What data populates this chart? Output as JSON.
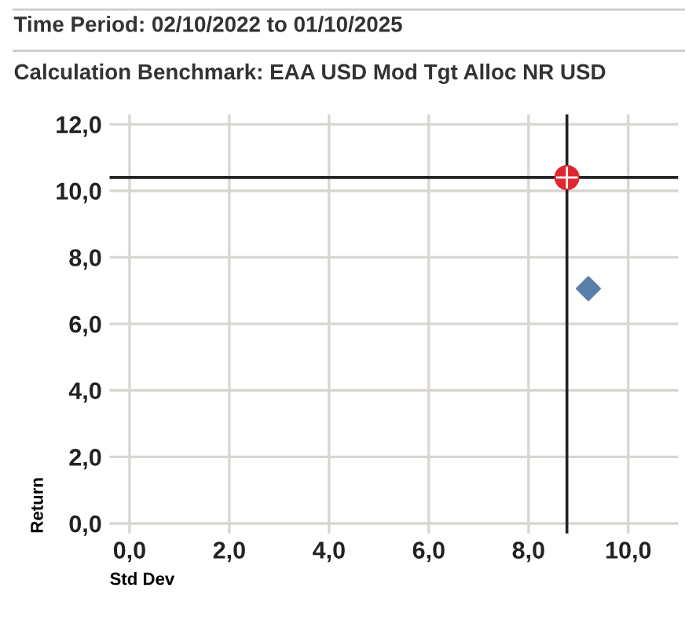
{
  "chart_data": {
    "type": "scatter",
    "title": "Time Period: 02/10/2022 to 01/10/2025",
    "subtitle": "Calculation Benchmark: EAA USD Mod Tgt Alloc NR USD",
    "xlabel": "Std Dev",
    "ylabel": "Return",
    "series": [
      {
        "color": "#5b7fa6",
        "marker": "diamond",
        "x": [
          9.2
        ],
        "values": [
          7.06
        ]
      },
      {
        "color": "#e0262e",
        "marker": "circle",
        "x": [
          8.77
        ],
        "values": [
          10.4
        ]
      }
    ],
    "ref_lines": [
      {
        "axis": "x",
        "value": 8.77,
        "color": "#222222"
      },
      {
        "axis": "y",
        "value": 10.4,
        "color": "#222222"
      }
    ],
    "xlim": [
      -0.4,
      11
    ],
    "ylim": [
      -0.3,
      12.3
    ],
    "xticks": [
      {
        "value": 0,
        "label": "0,0"
      },
      {
        "value": 2,
        "label": "2,0"
      },
      {
        "value": 4,
        "label": "4,0"
      },
      {
        "value": 6,
        "label": "6,0"
      },
      {
        "value": 8,
        "label": "8,0"
      },
      {
        "value": 10,
        "label": "10,0"
      }
    ],
    "yticks": [
      {
        "value": 0,
        "label": "0,0"
      },
      {
        "value": 2,
        "label": "2,0"
      },
      {
        "value": 4,
        "label": "4,0"
      },
      {
        "value": 6,
        "label": "6,0"
      },
      {
        "value": 8,
        "label": "8,0"
      },
      {
        "value": 10,
        "label": "10,0"
      },
      {
        "value": 12,
        "label": "12,0"
      }
    ],
    "grid": true,
    "legend": false
  }
}
